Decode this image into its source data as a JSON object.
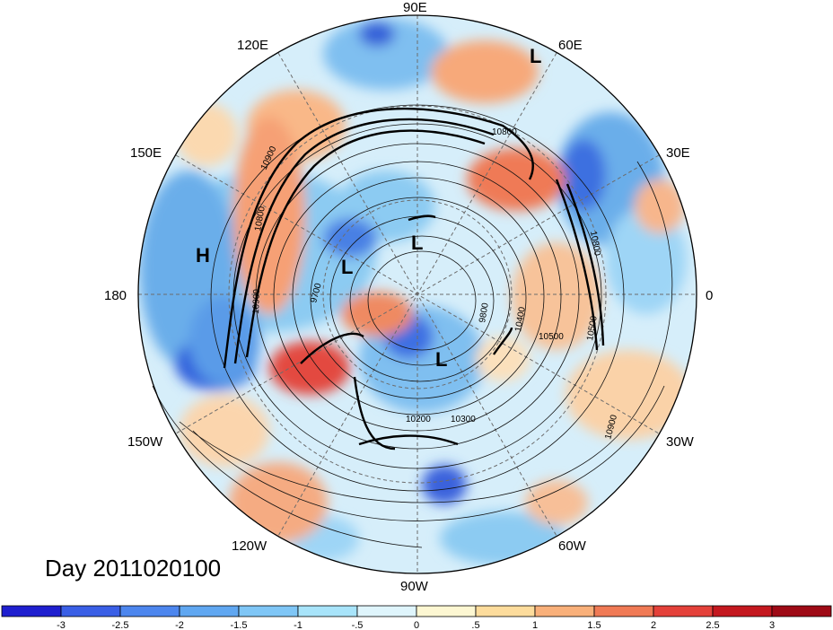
{
  "title": "Day 2011020100",
  "map": {
    "projection": "north-polar-stereographic",
    "longitude_labels": [
      "90E",
      "60E",
      "30E",
      "0",
      "30W",
      "60W",
      "90W",
      "120W",
      "150W",
      "180",
      "150E",
      "120E"
    ],
    "contour_labels": [
      "10800",
      "10900",
      "10800",
      "10900",
      "10800",
      "9700",
      "9800",
      "10400",
      "10500",
      "10900",
      "10300",
      "10200",
      "10500"
    ],
    "system_markers": [
      "L",
      "H",
      "L",
      "L",
      "L"
    ]
  },
  "colorbar": {
    "ticks": [
      "-3",
      "-2.5",
      "-2",
      "-1.5",
      "-1",
      "-.5",
      "0",
      ".5",
      "1",
      "1.5",
      "2",
      "2.5",
      "3"
    ],
    "colors": [
      "#1f1fcf",
      "#3a5fe6",
      "#4d86ee",
      "#60a7f1",
      "#7fc6f6",
      "#a8e4fa",
      "#dff5fc",
      "#fdf7d2",
      "#fddc9c",
      "#f9b07a",
      "#f07a55",
      "#e4413a",
      "#c4181f",
      "#9e0a16"
    ]
  }
}
